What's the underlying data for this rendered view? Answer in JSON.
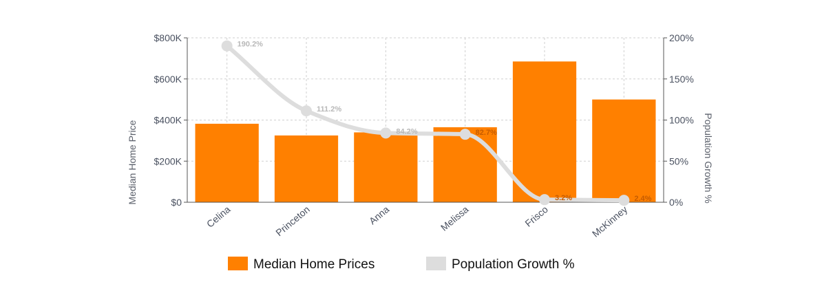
{
  "chart_data": {
    "type": "bar",
    "categories": [
      "Celina",
      "Princeton",
      "Anna",
      "Melissa",
      "Frisco",
      "McKinney"
    ],
    "series": [
      {
        "name": "Median Home Prices",
        "type": "bar",
        "axis": "left",
        "color": "#ff8000",
        "values": [
          382000,
          325000,
          340000,
          365000,
          685000,
          500000
        ]
      },
      {
        "name": "Population Growth %",
        "type": "line",
        "axis": "right",
        "color": "#dddddd",
        "values": [
          190.2,
          111.2,
          84.2,
          82.7,
          3.2,
          2.4
        ],
        "labels": [
          "190.2%",
          "111.2%",
          "84.2%",
          "82.7%",
          "3.2%",
          "2.4%"
        ]
      }
    ],
    "ylabel": "Median Home Price",
    "ylabel_right": "Population Growth %",
    "ylim": [
      0,
      800000
    ],
    "ylim_right": [
      0,
      200
    ],
    "yticks": [
      0,
      200000,
      400000,
      600000,
      800000
    ],
    "yticks_labels": [
      "$0",
      "$200K",
      "$400K",
      "$600K",
      "$800K"
    ],
    "yticks_right": [
      0,
      50,
      100,
      150,
      200
    ],
    "yticks_right_labels": [
      "0%",
      "50%",
      "100%",
      "150%",
      "200%"
    ],
    "grid": true,
    "legend_position": "bottom",
    "legend": [
      "Median Home Prices",
      "Population Growth %"
    ]
  }
}
